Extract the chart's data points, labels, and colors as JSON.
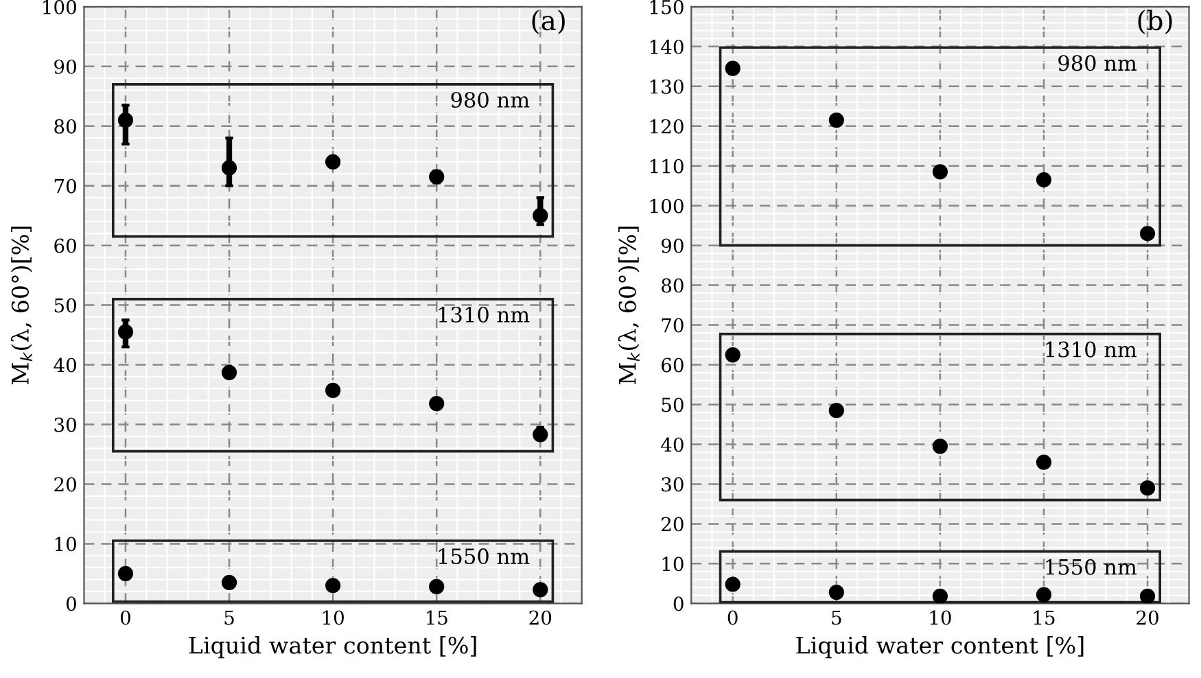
{
  "chart_data": [
    {
      "type": "scatter",
      "xlabel": "Liquid water content [%]",
      "ylabel": "M$_{k}$(λ, 60°)[%]",
      "x": [
        0,
        5,
        10,
        15,
        20
      ],
      "xlim": [
        -2,
        22
      ],
      "ylim": [
        0,
        100
      ],
      "xticks": [
        0,
        5,
        10,
        15,
        20
      ],
      "yticks": [
        0,
        10,
        20,
        30,
        40,
        50,
        60,
        70,
        80,
        90,
        100
      ],
      "grid": true,
      "marker": "circle",
      "annotations": [
        "(a)",
        "980 nm",
        "1310 nm",
        "1550 nm"
      ],
      "series": [
        {
          "color": "#000000",
          "values": [
            81,
            73,
            74,
            71.5,
            65
          ],
          "errors": [
            [
              77,
              83.5
            ],
            [
              70,
              78
            ],
            null,
            [
              70.5,
              72.5
            ],
            [
              63.5,
              68
            ]
          ]
        },
        {
          "color": "#000000",
          "values": [
            45.5,
            38.7,
            35.7,
            33.5,
            28.3
          ],
          "errors": [
            [
              43,
              47.5
            ],
            null,
            null,
            null,
            [
              27.5,
              29.5
            ]
          ]
        },
        {
          "color": "#000000",
          "values": [
            5,
            3.5,
            3,
            2.8,
            2.3
          ]
        }
      ]
    },
    {
      "type": "scatter",
      "xlabel": "Liquid water content [%]",
      "ylabel": "M$_{k}$(λ, 60°)[%]",
      "x": [
        0,
        5,
        10,
        15,
        20
      ],
      "xlim": [
        -2,
        22
      ],
      "ylim": [
        0,
        150
      ],
      "xticks": [
        0,
        5,
        10,
        15,
        20
      ],
      "yticks": [
        0,
        10,
        20,
        30,
        40,
        50,
        60,
        70,
        80,
        90,
        100,
        110,
        120,
        130,
        140,
        150
      ],
      "grid": true,
      "marker": "circle",
      "annotations": [
        "(b)",
        "980 nm",
        "1310 nm",
        "1550 nm"
      ],
      "series": [
        {
          "color": "#000000",
          "values": [
            134.5,
            121.5,
            108.5,
            106.5,
            93
          ]
        },
        {
          "color": "#000000",
          "values": [
            62.5,
            48.5,
            39.5,
            35.5,
            29
          ]
        },
        {
          "color": "#000000",
          "values": [
            4.8,
            2.8,
            1.8,
            2.2,
            1.8
          ]
        }
      ]
    }
  ]
}
